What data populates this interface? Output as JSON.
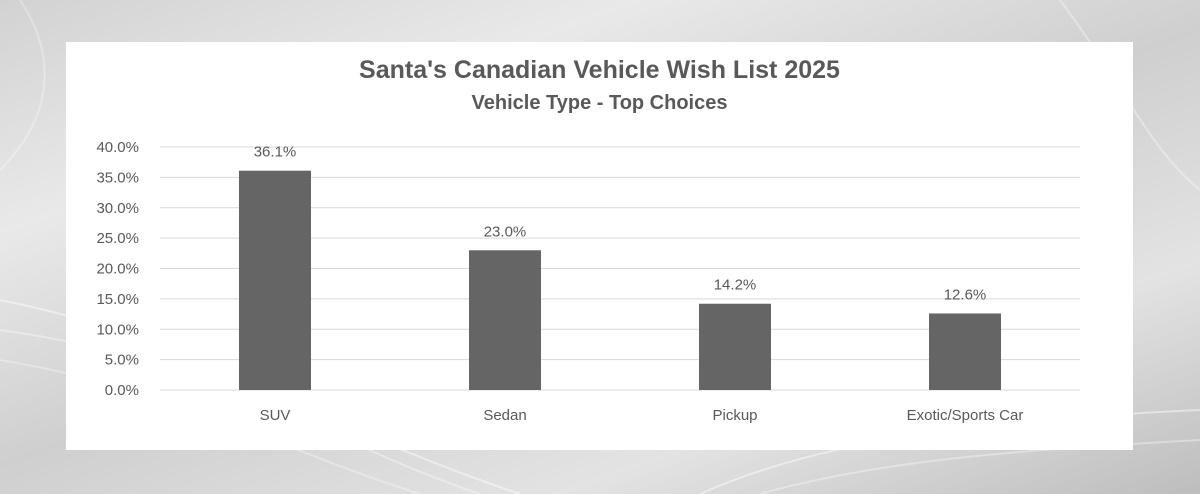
{
  "colors": {
    "bar": "#656565",
    "grid": "#d9d9d9",
    "text": "#595959"
  },
  "chart_data": {
    "type": "bar",
    "title": "Santa's Canadian Vehicle Wish List 2025",
    "subtitle": "Vehicle Type - Top Choices",
    "categories": [
      "SUV",
      "Sedan",
      "Pickup",
      "Exotic/Sports Car"
    ],
    "values": [
      36.1,
      23.0,
      14.2,
      12.6
    ],
    "value_labels": [
      "36.1%",
      "23.0%",
      "14.2%",
      "12.6%"
    ],
    "xlabel": "",
    "ylabel": "",
    "ylim": [
      0,
      40
    ],
    "yticks": [
      0,
      5,
      10,
      15,
      20,
      25,
      30,
      35,
      40
    ],
    "ytick_labels": [
      "0.0%",
      "5.0%",
      "10.0%",
      "15.0%",
      "20.0%",
      "25.0%",
      "30.0%",
      "35.0%",
      "40.0%"
    ],
    "grid": true,
    "legend": "none"
  }
}
